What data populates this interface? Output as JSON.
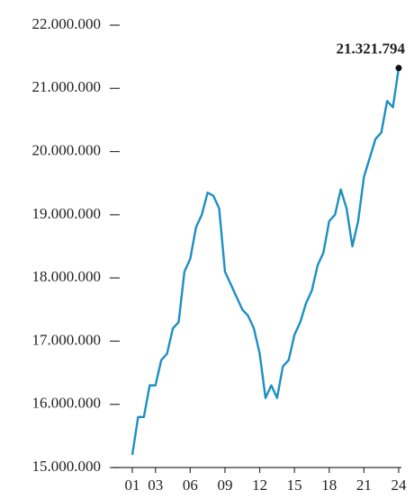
{
  "chart_data": {
    "type": "line",
    "x": [
      1,
      1.5,
      2,
      2.5,
      3,
      3.5,
      4,
      4.5,
      5,
      5.5,
      6,
      6.5,
      7,
      7.5,
      8,
      8.5,
      9,
      9.5,
      10,
      10.5,
      11,
      11.5,
      12,
      12.5,
      13,
      13.5,
      14,
      14.5,
      15,
      15.5,
      16,
      16.5,
      17,
      17.5,
      18,
      18.5,
      19,
      19.5,
      20,
      20.5,
      21,
      21.5,
      22,
      22.5,
      23,
      23.5,
      24
    ],
    "series": [
      {
        "name": null,
        "color": "#1b90c2",
        "values": [
          15200000,
          15800000,
          15800000,
          16300000,
          16300000,
          16700000,
          16800000,
          17200000,
          17300000,
          18100000,
          18300000,
          18800000,
          19000000,
          19350000,
          19300000,
          19100000,
          18100000,
          17900000,
          17700000,
          17500000,
          17400000,
          17200000,
          16800000,
          16100000,
          16300000,
          16100000,
          16600000,
          16700000,
          17100000,
          17300000,
          17600000,
          17800000,
          18200000,
          18400000,
          18900000,
          19000000,
          19400000,
          19100000,
          18500000,
          18900000,
          19600000,
          19900000,
          20200000,
          20300000,
          20800000,
          20700000,
          21321794
        ],
        "value_labels": [
          null,
          null,
          null,
          null,
          null,
          null,
          null,
          null,
          null,
          null,
          null,
          null,
          null,
          null,
          null,
          null,
          null,
          null,
          null,
          null,
          null,
          null,
          null,
          null,
          null,
          null,
          null,
          null,
          null,
          null,
          null,
          null,
          null,
          null,
          null,
          null,
          null,
          null,
          null,
          null,
          null,
          null,
          null,
          null,
          null,
          null,
          "21.321.794"
        ]
      }
    ],
    "xlim": [
      1,
      24
    ],
    "xticks": [
      {
        "value": 1,
        "label": "01"
      },
      {
        "value": 3,
        "label": "03"
      },
      {
        "value": 6,
        "label": "06"
      },
      {
        "value": 9,
        "label": "09"
      },
      {
        "value": 12,
        "label": "12"
      },
      {
        "value": 15,
        "label": "15"
      },
      {
        "value": 18,
        "label": "18"
      },
      {
        "value": 21,
        "label": "21"
      },
      {
        "value": 24,
        "label": "24"
      }
    ],
    "ylim": [
      15000000,
      22000000
    ],
    "yticks": [
      {
        "value": 15000000,
        "label": "15.000.000"
      },
      {
        "value": 16000000,
        "label": "16.000.000"
      },
      {
        "value": 17000000,
        "label": "17.000.000"
      },
      {
        "value": 18000000,
        "label": "18.000.000"
      },
      {
        "value": 19000000,
        "label": "19.000.000"
      },
      {
        "value": 20000000,
        "label": "20.000.000"
      },
      {
        "value": 21000000,
        "label": "21.000.000"
      },
      {
        "value": 22000000,
        "label": "22.000.000"
      }
    ]
  }
}
